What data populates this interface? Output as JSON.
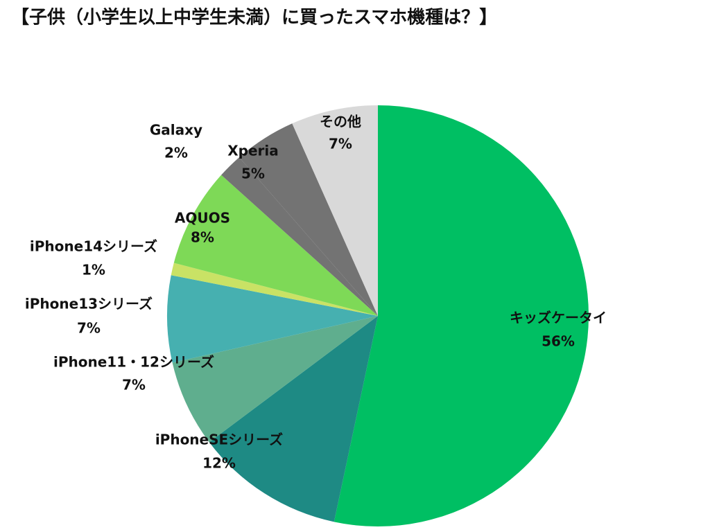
{
  "chart_data": {
    "type": "pie",
    "title": "【子供（小学生以上中学生未満）に買ったスマホ機種は？】",
    "categories": [
      "キッズケータイ",
      "iPhoneSEシリーズ",
      "iPhone11・12シリーズ",
      "iPhone13シリーズ",
      "iPhone14シリーズ",
      "AQUOS",
      "Galaxy",
      "Xperia",
      "その他"
    ],
    "values": [
      56,
      12,
      7,
      7,
      1,
      8,
      2,
      5,
      7
    ],
    "value_labels": [
      "56%",
      "12%",
      "7%",
      "7%",
      "1%",
      "8%",
      "2%",
      "5%",
      "7%"
    ],
    "colors": [
      "#00bf63",
      "#1e8a84",
      "#5fae8e",
      "#46b0b0",
      "#c9e265",
      "#7ed957",
      "#737373",
      "#737373",
      "#d9d9d9"
    ]
  }
}
